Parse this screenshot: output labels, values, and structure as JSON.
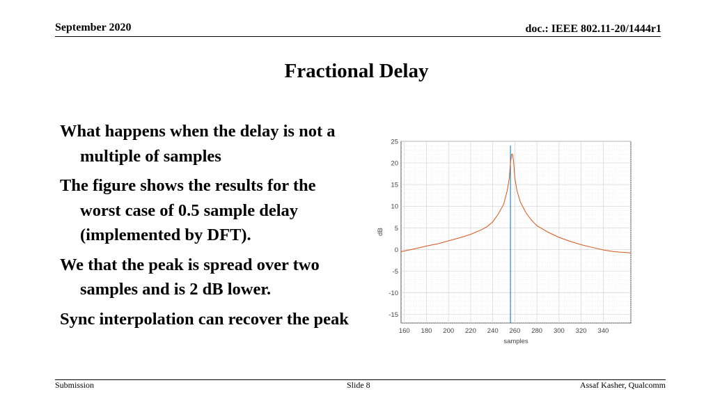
{
  "header": {
    "date": "September 2020",
    "doc": "doc.: IEEE 802.11-20/1444r1"
  },
  "title": "Fractional Delay",
  "bullets": [
    "What happens when the delay is not a multiple of samples",
    "The figure shows the results for the worst case of 0.5 sample delay (implemented by DFT).",
    "We that the peak is spread over two samples and is 2 dB lower.",
    "Sync interpolation can recover the peak"
  ],
  "footer": {
    "left": "Submission",
    "center": "Slide 8",
    "right": "Assaf Kasher, Qualcomm"
  },
  "chart_data": {
    "type": "line",
    "xlabel": "samples",
    "ylabel": "dB",
    "xlim": [
      157,
      365
    ],
    "ylim": [
      -17,
      25
    ],
    "xticks": [
      160,
      180,
      200,
      220,
      240,
      260,
      280,
      300,
      320,
      340
    ],
    "yticks": [
      25,
      20,
      15,
      10,
      5,
      0,
      -5,
      -10,
      -15
    ],
    "grid": true,
    "series": [
      {
        "color": "#0072BD",
        "x": [
          256,
          256,
          256
        ],
        "y": [
          -17,
          24,
          -17
        ]
      },
      {
        "color": "#D95319",
        "x": [
          157,
          170,
          180,
          190,
          200,
          210,
          220,
          230,
          235,
          240,
          245,
          250,
          253,
          255,
          256,
          257,
          258,
          259,
          260,
          262,
          265,
          270,
          275,
          280,
          290,
          300,
          310,
          320,
          330,
          340,
          350,
          365
        ],
        "y": [
          -0.5,
          0.2,
          0.8,
          1.3,
          2.0,
          2.7,
          3.5,
          4.6,
          5.3,
          6.4,
          8.2,
          10.5,
          13.5,
          16.5,
          20.0,
          22.0,
          22.0,
          20.0,
          16.5,
          13.5,
          11.0,
          8.5,
          6.8,
          5.5,
          4.0,
          2.8,
          1.9,
          1.1,
          0.5,
          -0.1,
          -0.5,
          -0.8
        ]
      }
    ]
  }
}
